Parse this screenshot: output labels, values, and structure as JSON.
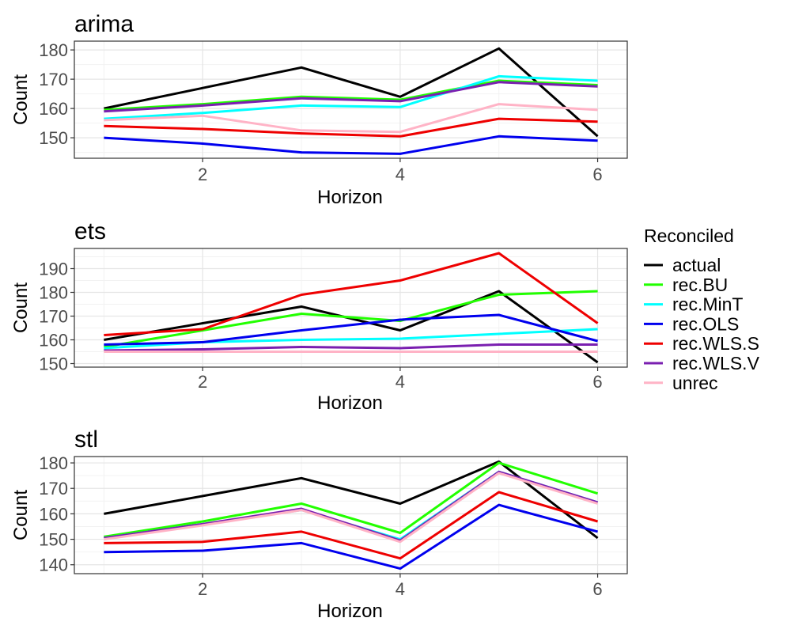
{
  "chart_data": [
    {
      "type": "line",
      "title": "arima",
      "xlabel": "Horizon",
      "ylabel": "Count",
      "x": [
        1,
        2,
        3,
        4,
        5,
        6
      ],
      "xlim": [
        0.7,
        6.3
      ],
      "ylim": [
        143,
        183
      ],
      "xticks": [
        2,
        4,
        6
      ],
      "yticks": [
        150,
        160,
        170,
        180
      ],
      "grid": true,
      "series": [
        {
          "name": "actual",
          "values": [
            160,
            167,
            174,
            164,
            180.5,
            150.5
          ]
        },
        {
          "name": "rec.BU",
          "values": [
            159.5,
            161.5,
            164,
            163,
            169.5,
            168
          ]
        },
        {
          "name": "rec.MinT",
          "values": [
            156.5,
            158.5,
            161,
            160.5,
            171,
            169.5
          ]
        },
        {
          "name": "rec.OLS",
          "values": [
            150,
            148,
            145,
            144.5,
            150.5,
            149
          ]
        },
        {
          "name": "rec.WLS.S",
          "values": [
            154,
            153,
            151.5,
            150.5,
            156.5,
            155.5
          ]
        },
        {
          "name": "rec.WLS.V",
          "values": [
            159,
            161,
            163.5,
            162.5,
            169,
            167.5
          ]
        },
        {
          "name": "unrec",
          "values": [
            156,
            157.5,
            152.5,
            152,
            161.5,
            159.5
          ]
        }
      ]
    },
    {
      "type": "line",
      "title": "ets",
      "xlabel": "Horizon",
      "ylabel": "Count",
      "x": [
        1,
        2,
        3,
        4,
        5,
        6
      ],
      "xlim": [
        0.7,
        6.3
      ],
      "ylim": [
        148.5,
        198.5
      ],
      "xticks": [
        2,
        4,
        6
      ],
      "yticks": [
        150,
        160,
        170,
        180,
        190
      ],
      "grid": true,
      "series": [
        {
          "name": "actual",
          "values": [
            160,
            167,
            174,
            164,
            180.5,
            150.5
          ]
        },
        {
          "name": "rec.BU",
          "values": [
            157,
            164,
            171,
            168,
            179,
            180.5
          ]
        },
        {
          "name": "rec.MinT",
          "values": [
            156.5,
            159,
            160,
            160.5,
            162.5,
            164.5
          ]
        },
        {
          "name": "rec.OLS",
          "values": [
            158,
            159,
            164,
            168.5,
            170.5,
            159.5
          ]
        },
        {
          "name": "rec.WLS.S",
          "values": [
            162,
            164.5,
            179,
            185,
            196.5,
            167
          ]
        },
        {
          "name": "rec.WLS.V",
          "values": [
            155.5,
            156,
            157,
            156.5,
            158,
            158
          ]
        },
        {
          "name": "unrec",
          "values": [
            155,
            155,
            155,
            155,
            155,
            155
          ]
        }
      ]
    },
    {
      "type": "line",
      "title": "stl",
      "xlabel": "Horizon",
      "ylabel": "Count",
      "x": [
        1,
        2,
        3,
        4,
        5,
        6
      ],
      "xlim": [
        0.7,
        6.3
      ],
      "ylim": [
        136.5,
        182.5
      ],
      "xticks": [
        2,
        4,
        6
      ],
      "yticks": [
        140,
        150,
        160,
        170,
        180
      ],
      "grid": true,
      "series": [
        {
          "name": "actual",
          "values": [
            160,
            167,
            174,
            164,
            180.5,
            150.5
          ]
        },
        {
          "name": "rec.BU",
          "values": [
            151,
            157,
            164,
            152.5,
            180,
            168
          ]
        },
        {
          "name": "rec.MinT",
          "values": [
            150.5,
            156,
            161.5,
            150,
            176.5,
            164.5
          ]
        },
        {
          "name": "rec.OLS",
          "values": [
            145,
            145.5,
            148.5,
            138.5,
            163.5,
            153
          ]
        },
        {
          "name": "rec.WLS.S",
          "values": [
            148.5,
            149,
            153,
            142.5,
            168.5,
            157
          ]
        },
        {
          "name": "rec.WLS.V",
          "values": [
            150.5,
            156,
            162,
            149.5,
            176.5,
            164.5
          ]
        },
        {
          "name": "unrec",
          "values": [
            150,
            155.5,
            161.5,
            149,
            176,
            164
          ]
        }
      ]
    }
  ],
  "legend": {
    "title": "Reconciled",
    "placement": "right",
    "items": [
      {
        "name": "actual",
        "color": "#000000"
      },
      {
        "name": "rec.BU",
        "color": "#22ff00"
      },
      {
        "name": "rec.MinT",
        "color": "#00ffff"
      },
      {
        "name": "rec.OLS",
        "color": "#0000ee"
      },
      {
        "name": "rec.WLS.S",
        "color": "#ee0000"
      },
      {
        "name": "rec.WLS.V",
        "color": "#7a1fb0"
      },
      {
        "name": "unrec",
        "color": "#ffb3c6"
      }
    ]
  }
}
